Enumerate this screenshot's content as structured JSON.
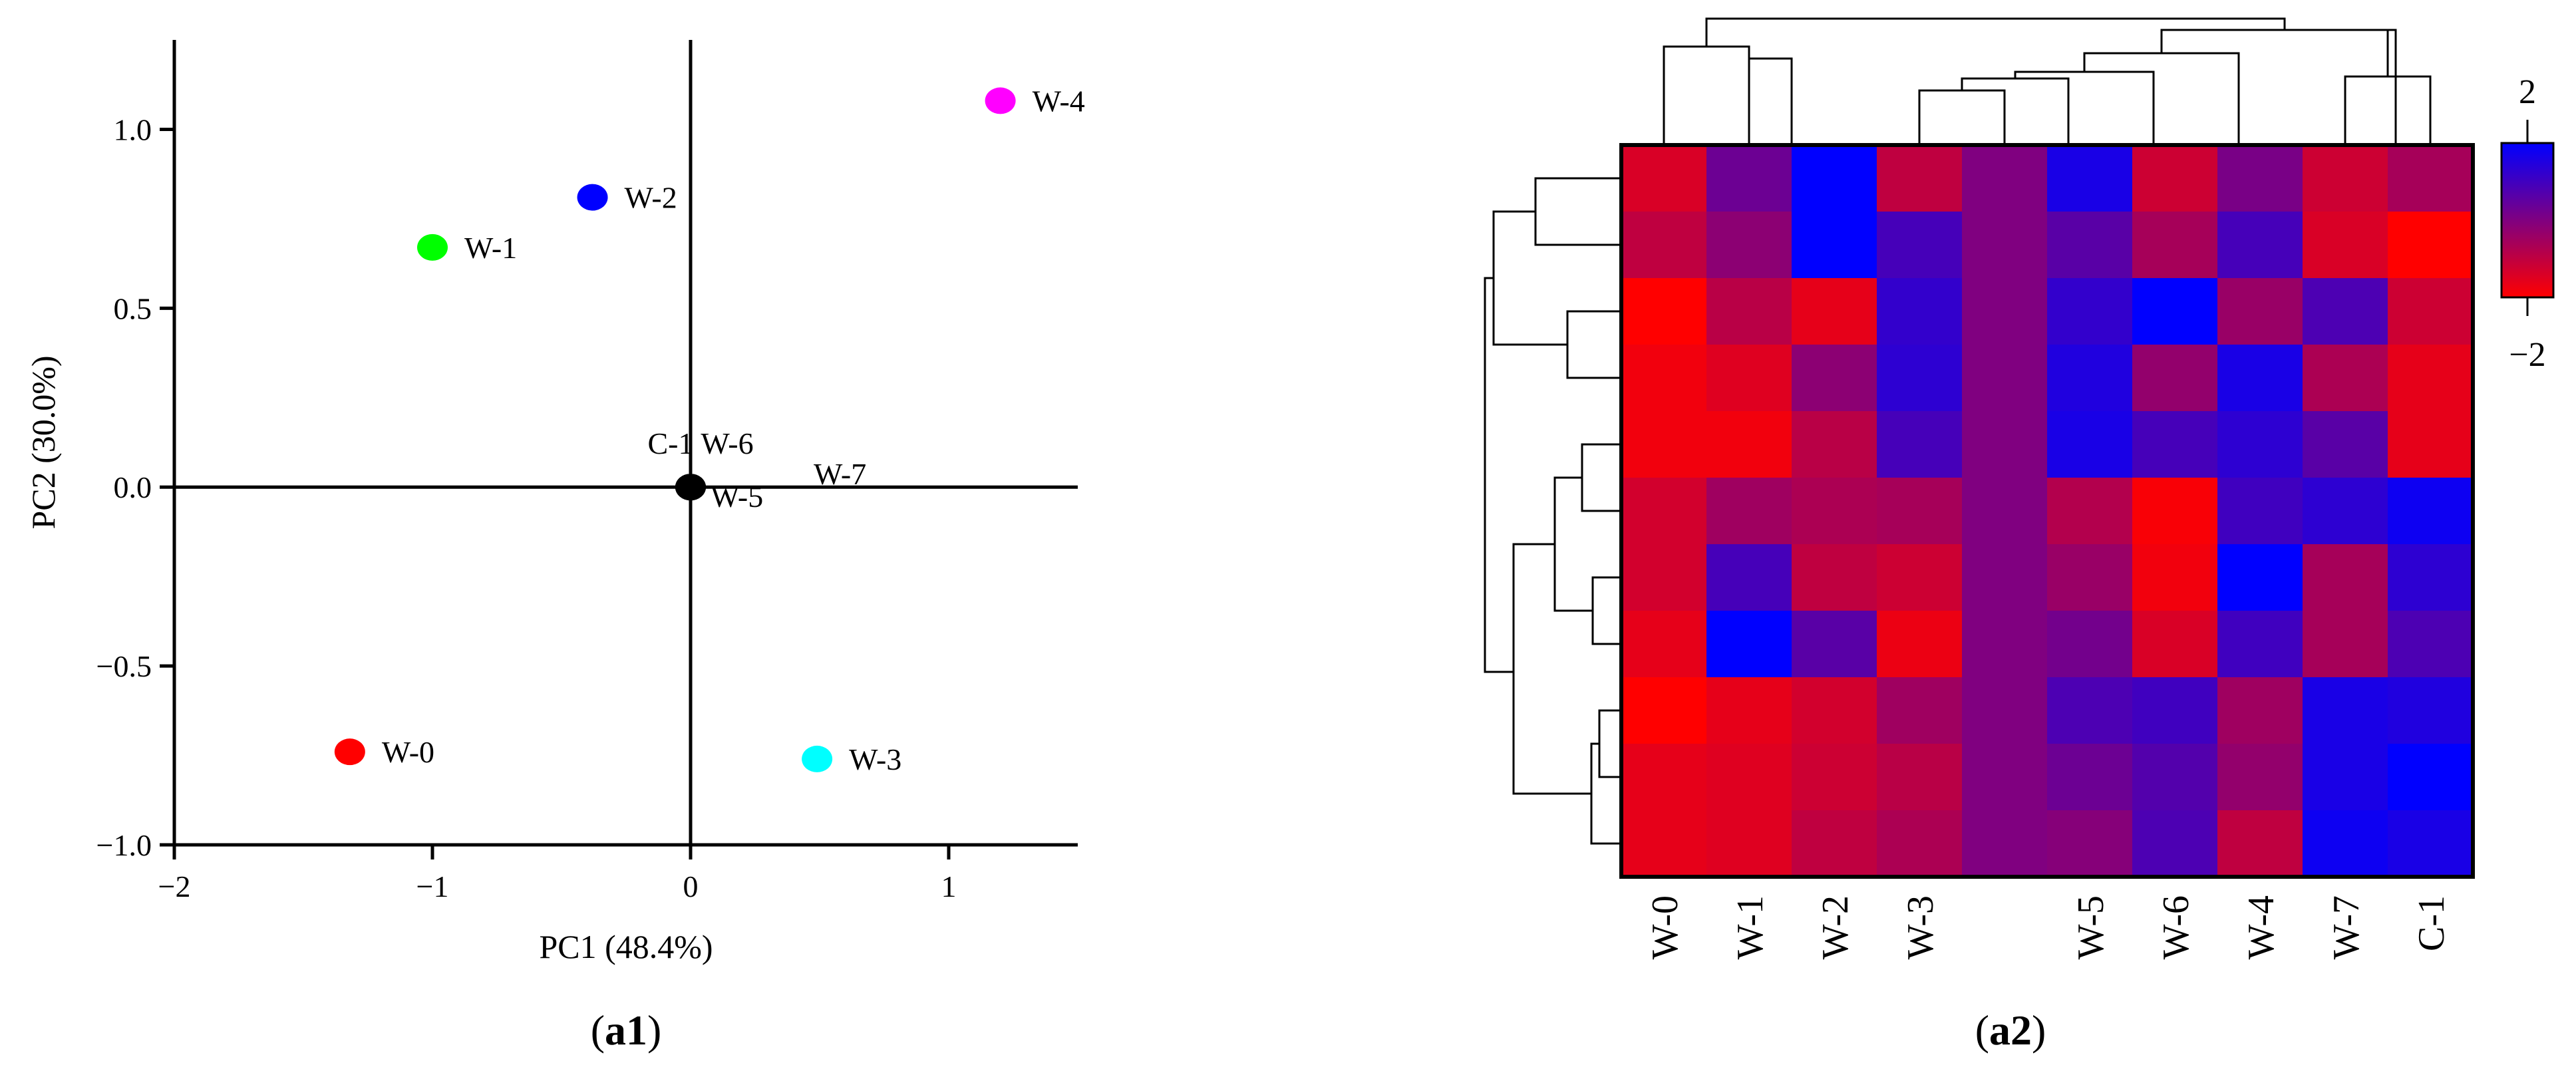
{
  "chart_data": [
    {
      "type": "scatter",
      "panel_label_open": "(",
      "panel_label_bold": "a1",
      "panel_label_close": ")",
      "xlabel": "PC1 (48.4%)",
      "ylabel": "PC2 (30.0%)",
      "xlim": [
        -2,
        1.5
      ],
      "ylim": [
        -1.0,
        1.25
      ],
      "x_ticks": [
        -2,
        -1,
        0,
        1
      ],
      "x_tick_labels": [
        "−2",
        "−1",
        "0",
        "1"
      ],
      "y_ticks": [
        -1.0,
        -0.5,
        0.0,
        0.5,
        1.0
      ],
      "y_tick_labels": [
        "−1.0",
        "−0.5",
        "0.0",
        "0.5",
        "1.0"
      ],
      "reference_lines": {
        "x": 0,
        "y": 0
      },
      "points": [
        {
          "label": "W-0",
          "x": -1.32,
          "y": -0.74,
          "color": "#ff0000"
        },
        {
          "label": "W-1",
          "x": -1.0,
          "y": 0.67,
          "color": "#00ff00"
        },
        {
          "label": "W-2",
          "x": -0.38,
          "y": 0.81,
          "color": "#0000ff"
        },
        {
          "label": "W-3",
          "x": 0.49,
          "y": -0.76,
          "color": "#00ffff"
        },
        {
          "label": "W-4",
          "x": 1.2,
          "y": 1.08,
          "color": "#ff00ff"
        },
        {
          "label": "C-1",
          "x": 0.0,
          "y": 0.0,
          "color": "#000000"
        },
        {
          "label": "W-6",
          "x": 0.0,
          "y": 0.0,
          "color": "#000000"
        },
        {
          "label": "W-5",
          "x": 0.0,
          "y": 0.0,
          "color": "#000000"
        },
        {
          "label": "W-7",
          "x": 0.0,
          "y": 0.0,
          "color": "#000000"
        }
      ]
    },
    {
      "type": "heatmap",
      "panel_label_open": "(",
      "panel_label_bold": "a2",
      "panel_label_close": ")",
      "columns": [
        "W-0",
        "W-1",
        "W-2",
        "W-3",
        "",
        "W-5",
        "W-6",
        "W-4",
        "W-7",
        "C-1"
      ],
      "color_scale": {
        "min": -2,
        "max": 2,
        "low_color": "#ff0000",
        "high_color": "#0000ff"
      },
      "legend_max_label": "2",
      "legend_min_label": "−2",
      "values": [
        [
          -1.4,
          0.3,
          2.0,
          -1.0,
          0.0,
          1.6,
          -1.2,
          0.1,
          -1.2,
          -0.6
        ],
        [
          -1.0,
          -0.2,
          2.0,
          0.9,
          0.0,
          0.6,
          -0.6,
          0.9,
          -1.4,
          -2.0
        ],
        [
          -2.0,
          -0.9,
          -1.6,
          1.2,
          0.0,
          1.2,
          2.0,
          -0.4,
          0.8,
          -1.2
        ],
        [
          -1.8,
          -1.5,
          -0.2,
          1.3,
          0.0,
          1.5,
          -0.3,
          1.6,
          -0.7,
          -1.6
        ],
        [
          -1.8,
          -1.8,
          -0.9,
          0.9,
          0.0,
          1.6,
          0.9,
          1.3,
          0.6,
          -1.6
        ],
        [
          -1.3,
          -0.5,
          -0.7,
          -0.6,
          0.0,
          -0.8,
          -1.9,
          1.0,
          1.3,
          1.8
        ],
        [
          -1.3,
          0.9,
          -1.0,
          -1.2,
          0.0,
          -0.4,
          -1.8,
          2.0,
          -0.6,
          1.3
        ],
        [
          -1.6,
          2.0,
          0.6,
          -1.7,
          0.0,
          0.2,
          -1.4,
          1.0,
          -0.6,
          0.8
        ],
        [
          -2.0,
          -1.6,
          -1.3,
          -0.5,
          0.0,
          0.8,
          1.0,
          -0.5,
          1.6,
          1.5
        ],
        [
          -1.6,
          -1.5,
          -1.2,
          -0.9,
          0.0,
          0.3,
          0.7,
          -0.3,
          1.6,
          2.0
        ],
        [
          -1.6,
          -1.5,
          -1.0,
          -0.7,
          0.0,
          -0.1,
          0.8,
          -1.0,
          1.8,
          1.6
        ]
      ]
    }
  ]
}
